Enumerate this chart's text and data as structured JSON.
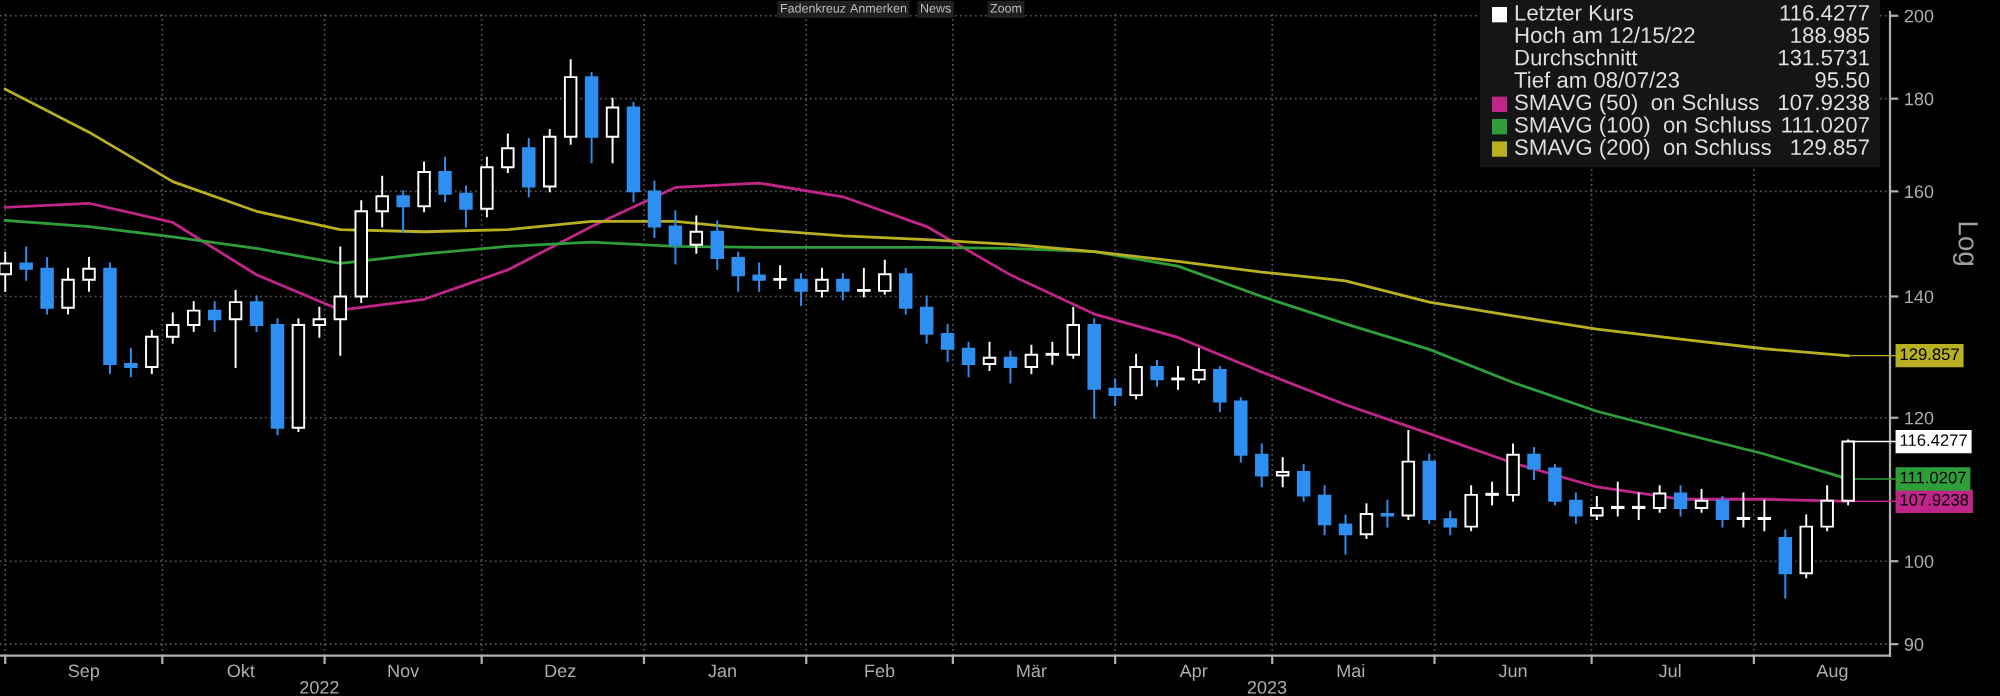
{
  "chart_data": {
    "type": "candlestick",
    "x": [
      "2022-09-01",
      "2022-09-05",
      "2022-09-09",
      "2022-09-13",
      "2022-09-17",
      "2022-09-21",
      "2022-09-25",
      "2022-09-29",
      "2022-10-03",
      "2022-10-07",
      "2022-10-11",
      "2022-10-15",
      "2022-10-19",
      "2022-10-23",
      "2022-10-27",
      "2022-10-31",
      "2022-11-04",
      "2022-11-08",
      "2022-11-12",
      "2022-11-16",
      "2022-11-20",
      "2022-11-24",
      "2022-11-28",
      "2022-12-02",
      "2022-12-06",
      "2022-12-10",
      "2022-12-14",
      "2022-12-18",
      "2022-12-22",
      "2022-12-26",
      "2022-12-30",
      "2023-01-03",
      "2023-01-07",
      "2023-01-11",
      "2023-01-15",
      "2023-01-19",
      "2023-01-23",
      "2023-01-27",
      "2023-01-31",
      "2023-02-04",
      "2023-02-08",
      "2023-02-12",
      "2023-02-16",
      "2023-02-20",
      "2023-02-24",
      "2023-02-28",
      "2023-03-04",
      "2023-03-08",
      "2023-03-12",
      "2023-03-16",
      "2023-03-20",
      "2023-03-24",
      "2023-03-28",
      "2023-04-01",
      "2023-04-05",
      "2023-04-09",
      "2023-04-13",
      "2023-04-17",
      "2023-04-21",
      "2023-04-25",
      "2023-04-29",
      "2023-05-03",
      "2023-05-07",
      "2023-05-11",
      "2023-05-15",
      "2023-05-19",
      "2023-05-23",
      "2023-05-27",
      "2023-05-31",
      "2023-06-04",
      "2023-06-08",
      "2023-06-12",
      "2023-06-16",
      "2023-06-20",
      "2023-06-24",
      "2023-06-28",
      "2023-07-02",
      "2023-07-06",
      "2023-07-10",
      "2023-07-14",
      "2023-07-18",
      "2023-07-22",
      "2023-07-26",
      "2023-07-30",
      "2023-08-03",
      "2023-08-07",
      "2023-08-11",
      "2023-08-15",
      "2023-08-19"
    ],
    "series": [
      {
        "name": "Letzter Kurs",
        "color": "#ffffff",
        "ohlc": [
          [
            144,
            148,
            141,
            146
          ],
          [
            146,
            149,
            143,
            145
          ],
          [
            145,
            147,
            137,
            138
          ],
          [
            138,
            145,
            137,
            143
          ],
          [
            143,
            147,
            141,
            145
          ],
          [
            145,
            146,
            127,
            128.5
          ],
          [
            128.5,
            131,
            126.5,
            128
          ],
          [
            128,
            134,
            127,
            133
          ],
          [
            133,
            137,
            132,
            135
          ],
          [
            135,
            139,
            134,
            137.5
          ],
          [
            137.5,
            139,
            134,
            136
          ],
          [
            136,
            141,
            128,
            139
          ],
          [
            139,
            140,
            134,
            135
          ],
          [
            135,
            136,
            117.5,
            118.5
          ],
          [
            118.5,
            136,
            118,
            135
          ],
          [
            135,
            138,
            133,
            136
          ],
          [
            136,
            149,
            130,
            140
          ],
          [
            140,
            158,
            139,
            156
          ],
          [
            156,
            163,
            153,
            159
          ],
          [
            159,
            160,
            152,
            157
          ],
          [
            157,
            166,
            156,
            164
          ],
          [
            164,
            167,
            158,
            159.5
          ],
          [
            159.5,
            161,
            153,
            156.5
          ],
          [
            156.5,
            167,
            155,
            165
          ],
          [
            165,
            172,
            164,
            169
          ],
          [
            169,
            171,
            159,
            161
          ],
          [
            161,
            173,
            160,
            171.5
          ],
          [
            171.5,
            188.985,
            170,
            185
          ],
          [
            185,
            186,
            166,
            171.5
          ],
          [
            171.5,
            180,
            166,
            178
          ],
          [
            178,
            179,
            158,
            160
          ],
          [
            160,
            162,
            151,
            153
          ],
          [
            153,
            156,
            146,
            149.5
          ],
          [
            149.5,
            155,
            148,
            152
          ],
          [
            152,
            154,
            145,
            147
          ],
          [
            147,
            148,
            141,
            143.8
          ],
          [
            143.8,
            146,
            141,
            143
          ],
          [
            143,
            145.5,
            141.5,
            143
          ],
          [
            143,
            144,
            138.5,
            141
          ],
          [
            141,
            145,
            140,
            143
          ],
          [
            143,
            144,
            139.5,
            141
          ],
          [
            141,
            145,
            140,
            141
          ],
          [
            141,
            146.5,
            140.5,
            144
          ],
          [
            144,
            145,
            137,
            138
          ],
          [
            138,
            140,
            132,
            133.5
          ],
          [
            133.5,
            135,
            129,
            131
          ],
          [
            131,
            132,
            126.5,
            128.5
          ],
          [
            128.5,
            132,
            127.5,
            129.5
          ],
          [
            129.5,
            130.5,
            125.5,
            128
          ],
          [
            128,
            131.5,
            127,
            130
          ],
          [
            130,
            132,
            128.5,
            130
          ],
          [
            130,
            138,
            129.5,
            135
          ],
          [
            135,
            136,
            120,
            124.5
          ],
          [
            124.5,
            126,
            122,
            123.5
          ],
          [
            123.5,
            130,
            123,
            128
          ],
          [
            128,
            129,
            125,
            126
          ],
          [
            126,
            128,
            124.5,
            126
          ],
          [
            126,
            131,
            125.5,
            127.5
          ],
          [
            127.5,
            128,
            121,
            122.5
          ],
          [
            122.5,
            123,
            113.5,
            114.5
          ],
          [
            114.5,
            116,
            110,
            111.5
          ],
          [
            111.5,
            114,
            110,
            112
          ],
          [
            112,
            113,
            108,
            108.7
          ],
          [
            108.7,
            110,
            103.5,
            104.8
          ],
          [
            104.8,
            106,
            101,
            103.5
          ],
          [
            103.5,
            107.5,
            103,
            106.2
          ],
          [
            106.2,
            108,
            104.5,
            106
          ],
          [
            106,
            118,
            105.5,
            113.5
          ],
          [
            113.5,
            114.5,
            105,
            105.5
          ],
          [
            105.5,
            106.5,
            103.5,
            104.5
          ],
          [
            104.5,
            110,
            104,
            108.8
          ],
          [
            108.8,
            110.5,
            107.5,
            108.8
          ],
          [
            108.8,
            116,
            108,
            114.5
          ],
          [
            114.5,
            115.5,
            111,
            112.5
          ],
          [
            112.5,
            113,
            107.5,
            108
          ],
          [
            108,
            109,
            105,
            106
          ],
          [
            106,
            108.5,
            105.5,
            107
          ],
          [
            107,
            110.5,
            106,
            107
          ],
          [
            107,
            109,
            105.5,
            107
          ],
          [
            107,
            110,
            106.5,
            109
          ],
          [
            109,
            110,
            106,
            107
          ],
          [
            107,
            109.5,
            106.5,
            108
          ],
          [
            108,
            108.5,
            104.5,
            105.5
          ],
          [
            105.5,
            109,
            104.5,
            105.5
          ],
          [
            105.5,
            108,
            104,
            105.5
          ],
          [
            103,
            104,
            95.5,
            98.5
          ],
          [
            98.5,
            106,
            98,
            104.5
          ],
          [
            104.5,
            110,
            104,
            108
          ],
          [
            108,
            116.6,
            107.5,
            116.4277
          ]
        ],
        "colors": [
          "#ffffff",
          "#2f8ff0",
          "#2f8ff0",
          "#ffffff",
          "#ffffff",
          "#2f8ff0",
          "#2f8ff0",
          "#ffffff",
          "#ffffff",
          "#ffffff",
          "#2f8ff0",
          "#ffffff",
          "#2f8ff0",
          "#2f8ff0",
          "#ffffff",
          "#ffffff",
          "#ffffff",
          "#ffffff",
          "#ffffff",
          "#2f8ff0",
          "#ffffff",
          "#2f8ff0",
          "#2f8ff0",
          "#ffffff",
          "#ffffff",
          "#2f8ff0",
          "#ffffff",
          "#ffffff",
          "#2f8ff0",
          "#ffffff",
          "#2f8ff0",
          "#2f8ff0",
          "#2f8ff0",
          "#ffffff",
          "#2f8ff0",
          "#2f8ff0",
          "#2f8ff0",
          "#ffffff",
          "#2f8ff0",
          "#ffffff",
          "#2f8ff0",
          "#ffffff",
          "#ffffff",
          "#2f8ff0",
          "#2f8ff0",
          "#2f8ff0",
          "#2f8ff0",
          "#ffffff",
          "#2f8ff0",
          "#ffffff",
          "#ffffff",
          "#ffffff",
          "#2f8ff0",
          "#2f8ff0",
          "#ffffff",
          "#2f8ff0",
          "#ffffff",
          "#ffffff",
          "#2f8ff0",
          "#2f8ff0",
          "#2f8ff0",
          "#ffffff",
          "#2f8ff0",
          "#2f8ff0",
          "#2f8ff0",
          "#ffffff",
          "#2f8ff0",
          "#ffffff",
          "#2f8ff0",
          "#2f8ff0",
          "#ffffff",
          "#ffffff",
          "#ffffff",
          "#2f8ff0",
          "#2f8ff0",
          "#2f8ff0",
          "#ffffff",
          "#ffffff",
          "#ffffff",
          "#ffffff",
          "#2f8ff0",
          "#ffffff",
          "#2f8ff0",
          "#ffffff",
          "#ffffff",
          "#2f8ff0",
          "#ffffff",
          "#ffffff",
          "#ffffff"
        ]
      },
      {
        "name": "SMAVG (50)  on Schluss",
        "type": "line",
        "color": "#c0268a",
        "x": [
          "2022-09-01",
          "2022-09-17",
          "2022-10-03",
          "2022-10-19",
          "2022-11-04",
          "2022-11-20",
          "2022-12-06",
          "2022-12-22",
          "2023-01-07",
          "2023-01-23",
          "2023-02-08",
          "2023-02-24",
          "2023-03-12",
          "2023-03-28",
          "2023-04-13",
          "2023-04-29",
          "2023-05-15",
          "2023-05-31",
          "2023-06-16",
          "2023-07-02",
          "2023-07-18",
          "2023-08-03",
          "2023-08-19"
        ],
        "values": [
          156.8,
          157.6,
          153.8,
          143.9,
          137.6,
          139.5,
          144.8,
          153,
          160.8,
          161.7,
          158.9,
          153,
          143.9,
          136.9,
          132.9,
          127.2,
          122,
          117.6,
          113.3,
          109.9,
          108.2,
          108.2,
          107.9238
        ],
        "value_labels": [
          null,
          null,
          null,
          null,
          null,
          null,
          null,
          null,
          null,
          null,
          null,
          null,
          null,
          null,
          null,
          null,
          null,
          null,
          null,
          null,
          null,
          null,
          "107.9238"
        ]
      },
      {
        "name": "SMAVG (100)  on Schluss",
        "type": "line",
        "color": "#2f9e3a",
        "x": [
          "2022-09-01",
          "2022-09-17",
          "2022-10-03",
          "2022-10-19",
          "2022-11-04",
          "2022-11-20",
          "2022-12-06",
          "2022-12-22",
          "2023-01-07",
          "2023-01-23",
          "2023-02-08",
          "2023-02-24",
          "2023-03-12",
          "2023-03-28",
          "2023-04-13",
          "2023-04-29",
          "2023-05-15",
          "2023-05-31",
          "2023-06-16",
          "2023-07-02",
          "2023-07-18",
          "2023-08-03",
          "2023-08-19"
        ],
        "values": [
          154.2,
          153,
          151,
          148.8,
          146,
          147.8,
          149.2,
          150,
          149.2,
          149,
          149,
          149,
          148.8,
          148.2,
          145.5,
          140,
          135.2,
          130.9,
          125.5,
          121,
          117.7,
          114.6,
          111.0207
        ],
        "value_labels": [
          null,
          null,
          null,
          null,
          null,
          null,
          null,
          null,
          null,
          null,
          null,
          null,
          null,
          null,
          null,
          null,
          null,
          null,
          null,
          null,
          null,
          null,
          "111.0207"
        ]
      },
      {
        "name": "SMAVG (200)  on Schluss",
        "type": "line",
        "color": "#b8b020",
        "x": [
          "2022-09-01",
          "2022-09-17",
          "2022-10-03",
          "2022-10-19",
          "2022-11-04",
          "2022-11-20",
          "2022-12-06",
          "2022-12-22",
          "2023-01-07",
          "2023-01-23",
          "2023-02-08",
          "2023-02-24",
          "2023-03-12",
          "2023-03-28",
          "2023-04-13",
          "2023-04-29",
          "2023-05-15",
          "2023-05-31",
          "2023-06-16",
          "2023-07-02",
          "2023-07-18",
          "2023-08-03",
          "2023-08-19"
        ],
        "values": [
          182.2,
          172.5,
          162,
          156,
          152.4,
          152,
          152.4,
          154,
          154,
          152.4,
          151.2,
          150.5,
          149.6,
          148.2,
          146.4,
          144.4,
          142.8,
          139,
          136.6,
          134.3,
          132.6,
          131,
          129.857
        ],
        "value_labels": [
          null,
          null,
          null,
          null,
          null,
          null,
          null,
          null,
          null,
          null,
          null,
          null,
          null,
          null,
          null,
          null,
          null,
          null,
          null,
          null,
          null,
          null,
          "129.857"
        ]
      }
    ],
    "annotations": [
      "116.4277",
      "Hoch am 12/15/22",
      "188.985",
      "Durchschnitt",
      "131.5731",
      "Tief am 08/07/23",
      "95.50",
      "Fadenkreuz",
      "Anmerken",
      "News",
      "Zoom"
    ],
    "ylabel": "Log",
    "log": "y",
    "ylim": [
      88.7,
      201
    ],
    "yticks": [
      90,
      100,
      120,
      140,
      160,
      180,
      200
    ],
    "xlim": [
      "2022-08-31",
      "2023-08-27"
    ],
    "xticks": [
      {
        "value": "2022-09-01",
        "label": null
      },
      {
        "value": "2022-10-01",
        "label": null
      },
      {
        "value": "2022-11-01",
        "label": null
      },
      {
        "value": "2022-12-01",
        "label": null
      },
      {
        "value": "2023-01-01",
        "label": null
      },
      {
        "value": "2023-02-01",
        "label": null
      },
      {
        "value": "2023-03-01",
        "label": null
      },
      {
        "value": "2023-04-01",
        "label": null
      },
      {
        "value": "2023-05-01",
        "label": null
      },
      {
        "value": "2023-06-01",
        "label": null
      },
      {
        "value": "2023-07-01",
        "label": null
      },
      {
        "value": "2023-08-01",
        "label": null
      },
      {
        "value": "2022-09-16",
        "label": "Sep"
      },
      {
        "value": "2022-10-16",
        "label": "Okt"
      },
      {
        "value": "2022-11-16",
        "label": "Nov"
      },
      {
        "value": "2022-12-16",
        "label": "Dez"
      },
      {
        "value": "2023-01-16",
        "label": "Jan"
      },
      {
        "value": "2023-02-15",
        "label": "Feb"
      },
      {
        "value": "2023-03-16",
        "label": "Mär"
      },
      {
        "value": "2023-04-16",
        "label": "Apr"
      },
      {
        "value": "2023-05-16",
        "label": "Mai"
      },
      {
        "value": "2023-06-16",
        "label": "Jun"
      },
      {
        "value": "2023-07-16",
        "label": "Jul"
      },
      {
        "value": "2023-08-16",
        "label": "Aug"
      }
    ],
    "x2lim": [
      "2022-08-31",
      "2023-08-27"
    ],
    "x2ticks": [
      {
        "value": "2022-10-31",
        "label": "2022"
      },
      {
        "value": "2023-04-30",
        "label": "2023"
      }
    ],
    "grid": true,
    "legend": "top right"
  }
}
